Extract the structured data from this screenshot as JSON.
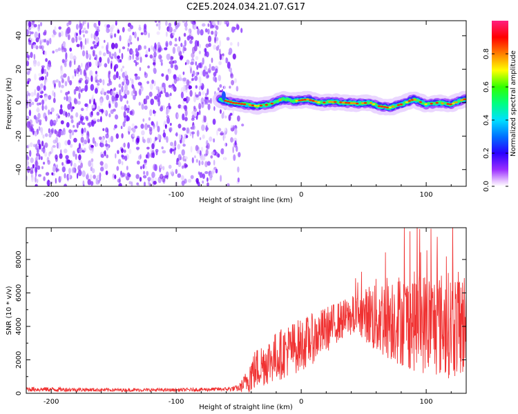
{
  "figure": {
    "title": "C2E5.2024.034.21.07.G17"
  },
  "chart_data": [
    {
      "type": "heatmap",
      "xlabel": "Height of straight line (km)",
      "ylabel": "Frequency (Hz)",
      "xlim": [
        -220,
        132
      ],
      "ylim": [
        -50,
        49
      ],
      "xticks": [
        -200,
        -100,
        0,
        100
      ],
      "yticks": [
        -40,
        -20,
        0,
        20,
        40
      ],
      "grid": false,
      "colorbar": {
        "label": "Normalized spectral amplitude",
        "range": [
          0,
          1
        ],
        "ticks": [
          "0.0",
          "0.2",
          "0.4",
          "0.6",
          "0.8"
        ],
        "colormap": "rainbow"
      },
      "signal_track": {
        "start_x": -65,
        "frequency_hz": [
          [
            -65,
            2.0
          ],
          [
            -55,
            0.0
          ],
          [
            -45,
            -1.0
          ],
          [
            -35,
            -2.0
          ],
          [
            -25,
            -1.0
          ],
          [
            -15,
            2.0
          ],
          [
            -5,
            1.0
          ],
          [
            5,
            2.0
          ],
          [
            15,
            0.0
          ],
          [
            25,
            0.5
          ],
          [
            35,
            0.0
          ],
          [
            45,
            -0.5
          ],
          [
            55,
            0.0
          ],
          [
            62,
            -2.0
          ],
          [
            70,
            -3.0
          ],
          [
            80,
            -1.0
          ],
          [
            90,
            2.0
          ],
          [
            100,
            -1.0
          ],
          [
            110,
            0.0
          ],
          [
            120,
            -1.0
          ],
          [
            130,
            2.0
          ]
        ]
      },
      "noise": {
        "x_range": [
          -220,
          -45
        ],
        "freq_range": [
          -50,
          49
        ]
      }
    },
    {
      "type": "line",
      "xlabel": "Height of straight line (km)",
      "ylabel": "SNR (10 * v/v)",
      "xlim": [
        -220,
        132
      ],
      "ylim": [
        0,
        9900
      ],
      "xticks": [
        -200,
        -100,
        0,
        100
      ],
      "yticks": [
        0,
        2000,
        4000,
        6000,
        8000
      ],
      "grid": false,
      "series": [
        {
          "color": "#f03232",
          "envelope_x": [
            -220,
            -150,
            -100,
            -60,
            -50,
            -45,
            -40,
            -30,
            -20,
            -10,
            0,
            10,
            20,
            30,
            40,
            50,
            55,
            60,
            70,
            80,
            90,
            100,
            110,
            120,
            132
          ],
          "mean": [
            250,
            200,
            200,
            250,
            300,
            600,
            1200,
            1800,
            2200,
            2600,
            2900,
            3300,
            3800,
            4300,
            4600,
            4700,
            4700,
            4500,
            4600,
            4400,
            4300,
            4200,
            4100,
            4100,
            4100
          ],
          "spread": [
            150,
            100,
            100,
            120,
            200,
            600,
            1200,
            1400,
            1500,
            1600,
            1600,
            1500,
            1400,
            1200,
            1200,
            1400,
            2000,
            2400,
            2600,
            2800,
            3000,
            3100,
            3200,
            3200,
            3200
          ]
        }
      ]
    }
  ]
}
